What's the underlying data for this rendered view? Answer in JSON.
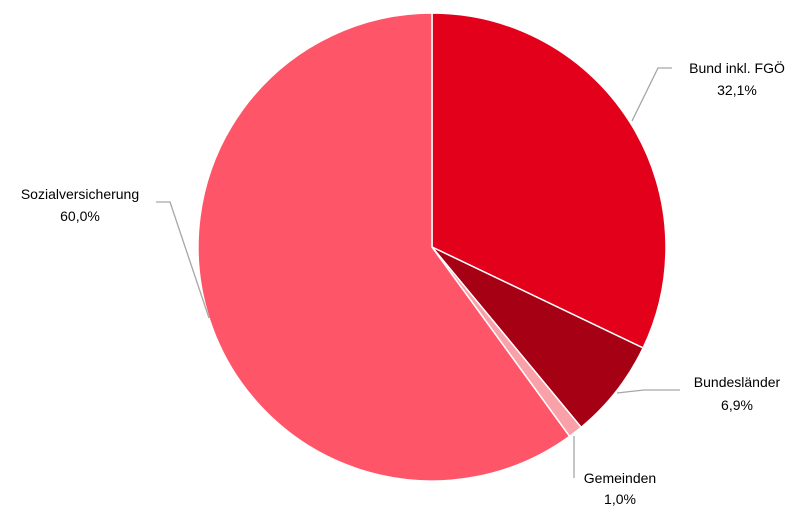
{
  "chart_data": {
    "type": "pie",
    "start_angle_deg": 0,
    "direction": "clockwise",
    "slices": [
      {
        "name": "Bund inkl. FGÖ",
        "value": 32.1,
        "value_label": "32,1%",
        "color": "#e2001a"
      },
      {
        "name": "Bundesländer",
        "value": 6.9,
        "value_label": "6,9%",
        "color": "#a50014"
      },
      {
        "name": "Gemeinden",
        "value": 1.0,
        "value_label": "1,0%",
        "color": "#f9a0a8"
      },
      {
        "name": "Sozialversicherung",
        "value": 60.0,
        "value_label": "60,0%",
        "color": "#ff5568"
      }
    ],
    "legend": "none",
    "data_labels": "outside with leader lines"
  }
}
